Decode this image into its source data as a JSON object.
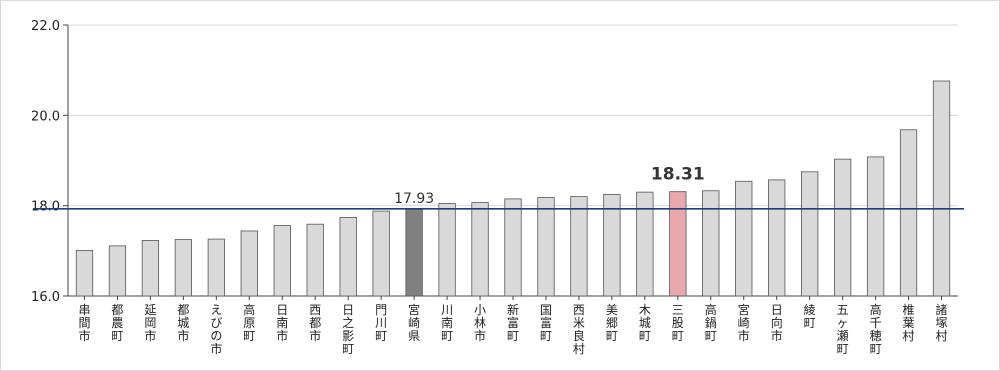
{
  "chart_data": {
    "type": "bar",
    "title": "",
    "xlabel": "",
    "ylabel": "",
    "ylim": [
      16.0,
      22.0
    ],
    "yticks": [
      "16.0",
      "18.0",
      "20.0",
      "22.0"
    ],
    "grid": "horizontal",
    "categories": [
      "串間市",
      "都農町",
      "延岡市",
      "都城市",
      "えびの市",
      "高原町",
      "日南市",
      "西都市",
      "日之影町",
      "門川町",
      "宮崎県",
      "川南町",
      "小林市",
      "新富町",
      "国富町",
      "西米良村",
      "美郷町",
      "木城町",
      "三股町",
      "高鍋町",
      "宮崎市",
      "日向市",
      "綾町",
      "五ヶ瀬町",
      "高千穂町",
      "椎葉村",
      "諸塚村"
    ],
    "values": [
      17.01,
      17.11,
      17.23,
      17.25,
      17.26,
      17.44,
      17.56,
      17.59,
      17.74,
      17.88,
      17.93,
      18.05,
      18.07,
      18.15,
      18.18,
      18.2,
      18.25,
      18.3,
      18.31,
      18.33,
      18.54,
      18.57,
      18.75,
      19.03,
      19.08,
      19.68,
      20.76
    ],
    "reference_line": 17.93,
    "highlights": [
      {
        "category": "宮崎県",
        "label": "17.93",
        "color": "#808080"
      },
      {
        "category": "三股町",
        "label": "18.31",
        "color": "#e8a8ac"
      }
    ],
    "colors": {
      "bar": "#d9d9d9",
      "bar_stroke": "#555555",
      "reference_line": "#1f3f7a",
      "grid": "#d9d9d9"
    }
  }
}
